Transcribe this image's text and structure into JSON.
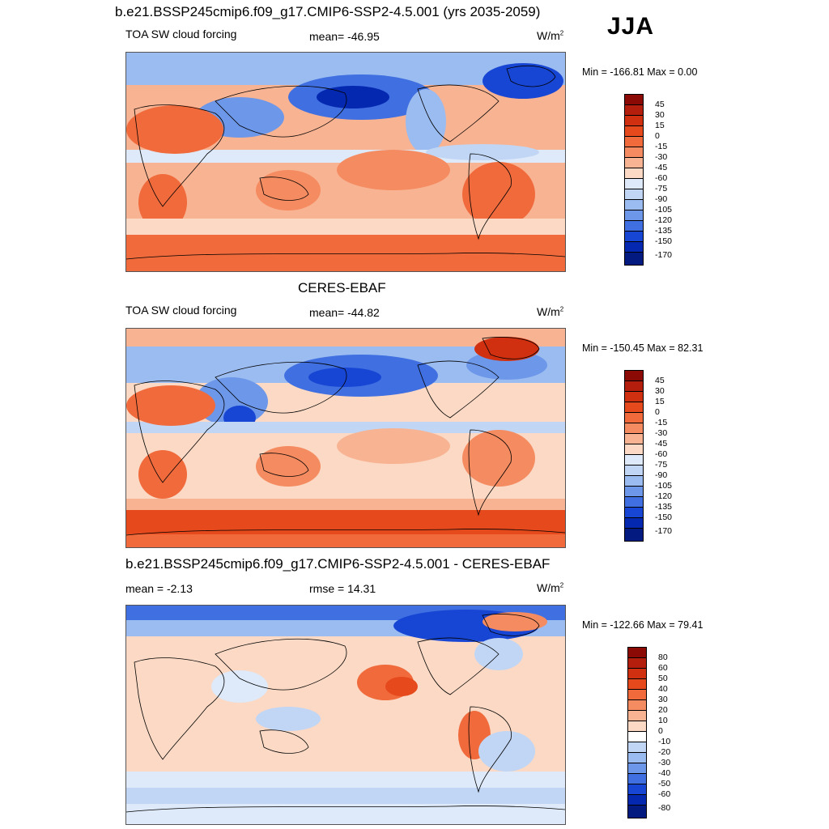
{
  "header": {
    "title": "b.e21.BSSP245cmip6.f09_g17.CMIP6-SSP2-4.5.001 (yrs 2035-2059)",
    "season": "JJA"
  },
  "panels": [
    {
      "title": "",
      "variable": "TOA SW cloud forcing",
      "stat": "mean= -46.95",
      "units": "W/m",
      "units_sup": "2",
      "minmax": "Min = -166.81 Max =   0.00",
      "colorbar_labels": [
        "45",
        "30",
        "15",
        "0",
        "-15",
        "-30",
        "-45",
        "-60",
        "-75",
        "-90",
        "-105",
        "-120",
        "-135",
        "-150",
        "-170"
      ]
    },
    {
      "title": "CERES-EBAF",
      "variable": "TOA SW cloud forcing",
      "stat": "mean= -44.82",
      "units": "W/m",
      "units_sup": "2",
      "minmax": "Min = -150.45 Max =  82.31",
      "colorbar_labels": [
        "45",
        "30",
        "15",
        "0",
        "-15",
        "-30",
        "-45",
        "-60",
        "-75",
        "-90",
        "-105",
        "-120",
        "-135",
        "-150",
        "-170"
      ]
    },
    {
      "title": "b.e21.BSSP245cmip6.f09_g17.CMIP6-SSP2-4.5.001 - CERES-EBAF",
      "variable": "mean =  -2.13",
      "stat": "rmse =  14.31",
      "units": "W/m",
      "units_sup": "2",
      "minmax": "Min = -122.66 Max =  79.41",
      "colorbar_labels": [
        "80",
        "60",
        "50",
        "40",
        "30",
        "20",
        "10",
        "0",
        "-10",
        "-20",
        "-30",
        "-40",
        "-50",
        "-60",
        "-80"
      ]
    }
  ],
  "colors": {
    "abs_scale": [
      "#8c0a06",
      "#b41e0c",
      "#d0300f",
      "#e5491c",
      "#f06a3c",
      "#f58b60",
      "#f8b392",
      "#fbd9c4",
      "#deeaf9",
      "#c1d6f5",
      "#9bbcf0",
      "#6d97e9",
      "#3f6fe0",
      "#1846d4",
      "#0528b0",
      "#031a80"
    ],
    "diff_scale": [
      "#8c0a06",
      "#b41e0c",
      "#d0300f",
      "#e5491c",
      "#f06a3c",
      "#f58b60",
      "#f8b392",
      "#fbd9c4",
      "#ffffff",
      "#c1d6f5",
      "#9bbcf0",
      "#6d97e9",
      "#3f6fe0",
      "#1846d4",
      "#0528b0",
      "#031a80"
    ]
  }
}
